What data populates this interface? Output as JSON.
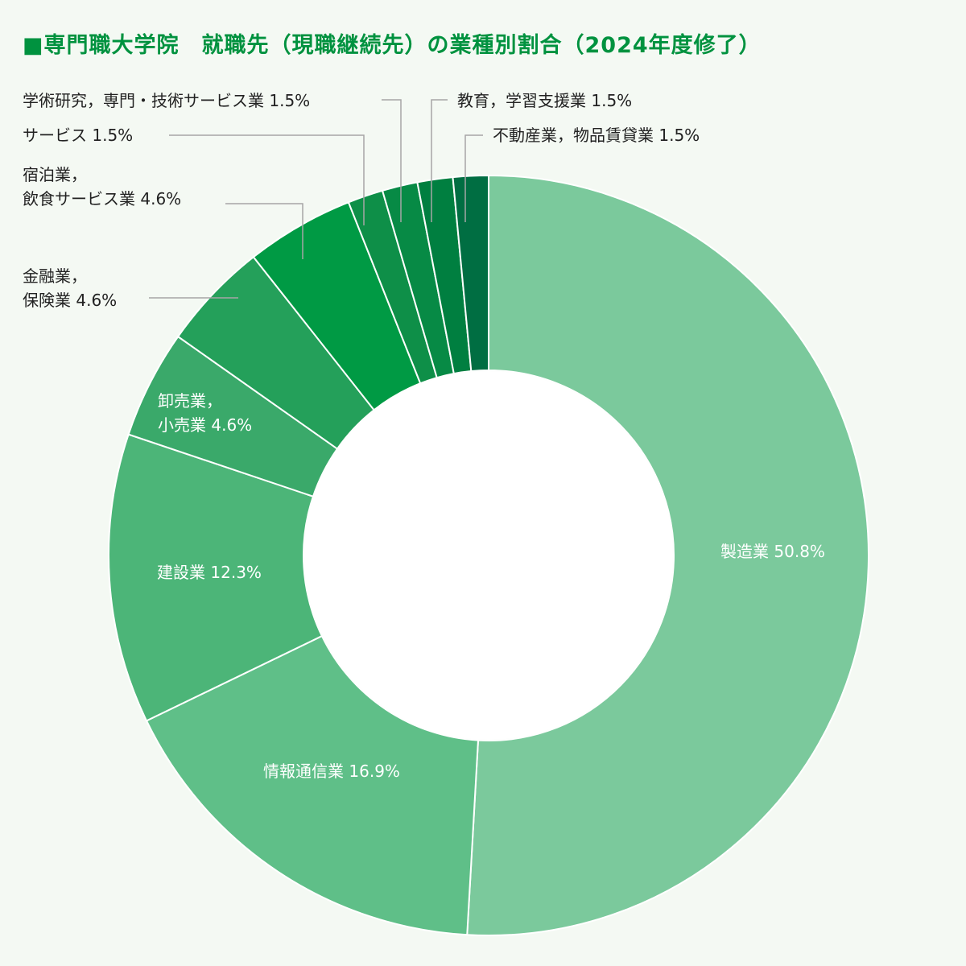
{
  "title": "■専門職大学院　就職先（現職継続先）の業種別割合（2024年度修了）",
  "chart_data": {
    "type": "pie",
    "variant": "donut",
    "start": "12 o'clock, clockwise",
    "categories": [
      "製造業",
      "情報通信業",
      "建設業",
      "卸売業，小売業",
      "金融業，保険業",
      "宿泊業，飲食サービス業",
      "サービス",
      "学術研究，専門・技術サービス業",
      "教育，学習支援業",
      "不動産業，物品賃貸業"
    ],
    "values": [
      50.8,
      16.9,
      12.3,
      4.6,
      4.6,
      4.6,
      1.5,
      1.5,
      1.5,
      1.5
    ],
    "unit": "%",
    "colors": [
      "#7bc99c",
      "#5fbf88",
      "#4cb578",
      "#3aa96a",
      "#24a05a",
      "#009a44",
      "#0e8f48",
      "#078a45",
      "#007f40",
      "#006e42"
    ],
    "labels": [
      {
        "lines": [
          "製造業 50.8%"
        ]
      },
      {
        "lines": [
          "情報通信業 16.9%"
        ]
      },
      {
        "lines": [
          "建設業 12.3%"
        ]
      },
      {
        "lines": [
          "卸売業，",
          "小売業 4.6%"
        ]
      },
      {
        "lines": [
          "金融業，",
          "保険業 4.6%"
        ]
      },
      {
        "lines": [
          "宿泊業，",
          "飲食サービス業 4.6%"
        ]
      },
      {
        "lines": [
          "サービス 1.5%"
        ]
      },
      {
        "lines": [
          "学術研究，専門・技術サービス業 1.5%"
        ]
      },
      {
        "lines": [
          "教育，学習支援業 1.5%"
        ]
      },
      {
        "lines": [
          "不動産業，物品賃貸業 1.5%"
        ]
      }
    ]
  }
}
